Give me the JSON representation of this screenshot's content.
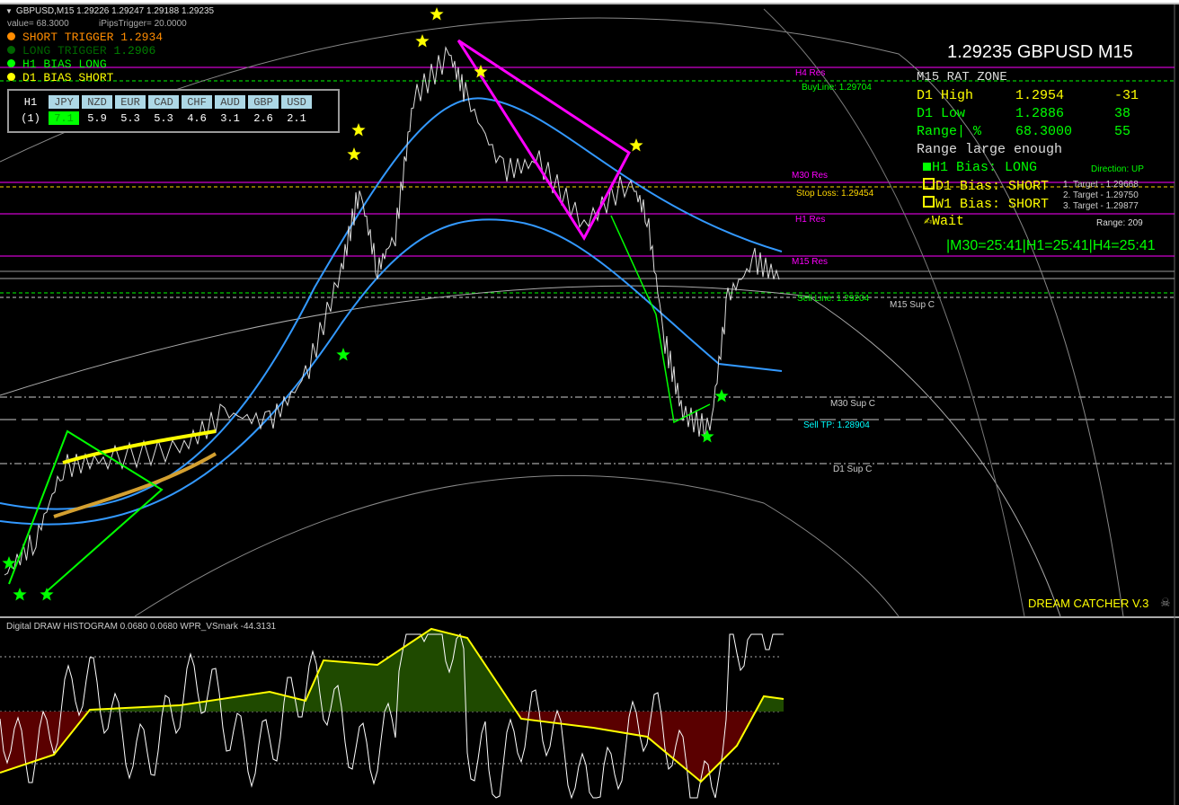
{
  "window": {
    "title": "GBPUSD,M15  1.29226 1.29247 1.29188 1.29235"
  },
  "overlay": {
    "value_text": "value= 68.3000",
    "pips_text": "iPipsTrigger= 20.0000"
  },
  "legend": [
    {
      "text": "SHORT TRIGGER",
      "value": "1.2934",
      "color": "#ff8c00"
    },
    {
      "text": "LONG TRIGGER",
      "value": "1.2906",
      "color": "#006400"
    },
    {
      "text": "H1 BIAS LONG",
      "value": "",
      "color": "#00ff00"
    },
    {
      "text": "D1 BIAS SHORT",
      "value": "",
      "color": "#ffff00"
    }
  ],
  "strength_table": {
    "timeframe": "H1",
    "row_label": "(1)",
    "currencies": [
      "JPY",
      "NZD",
      "EUR",
      "CAD",
      "CHF",
      "AUD",
      "GBP",
      "USD"
    ],
    "values": [
      "7.1",
      "5.9",
      "5.3",
      "5.3",
      "4.6",
      "3.1",
      "2.6",
      "2.1"
    ]
  },
  "panel": {
    "headline": "1.29235 GBPUSD M15",
    "zone": "M15 RAT ZONE",
    "rows": [
      {
        "label": "D1 High",
        "value": "1.2954",
        "delta": "-31",
        "color": "#ffff00"
      },
      {
        "label": "D1 Low",
        "value": "1.2886",
        "delta": "38",
        "color": "#00ff00"
      },
      {
        "label": "Range| %",
        "value": "68.3000",
        "delta": "55",
        "color": "#00ff00"
      }
    ],
    "range_note": "Range large enough",
    "biases": [
      {
        "text": "H1 Bias: LONG",
        "color": "#00ff00",
        "filled": true
      },
      {
        "text": "D1 Bias: SHORT",
        "color": "#ffff00",
        "filled": false
      },
      {
        "text": "W1 Bias: SHORT",
        "color": "#ffff00",
        "filled": false
      }
    ],
    "wait": "Wait",
    "timers": "|M30=25:41|H1=25:41|H4=25:41",
    "direction": "Direction: UP",
    "targets": [
      "1. Target - 1.29668",
      "2. Target - 1.29750",
      "3. Target - 1.29877"
    ],
    "range": "Range: 209"
  },
  "levels": {
    "h4_res": "H4 Res",
    "buy_line": "BuyLine: 1.29704",
    "m30_res": "M30 Res",
    "stop_loss": "Stop Loss: 1.29454",
    "h1_res": "H1 Res",
    "m15_res": "M15 Res",
    "sell_line": "Sell Line: 1.29204",
    "m15_sup": "M15 Sup C",
    "m30_sup": "M30 Sup C",
    "sell_tp": "Sell TP: 1.28904",
    "d1_sup": "D1 Sup C"
  },
  "colors": {
    "res": "#ff00ff",
    "buy": "#00ff00",
    "stop": "#ffd700",
    "tp": "#00ffff",
    "ma": "#3399ff",
    "signal": "#ffff00"
  },
  "brand": "DREAM CATCHER V.3",
  "brand_icon": "skull-crossbones-icon",
  "sub_window": {
    "label": "Digital DRAW HISTOGRAM 0.0680 0.0680  WPR_VSmark -44.3131"
  }
}
